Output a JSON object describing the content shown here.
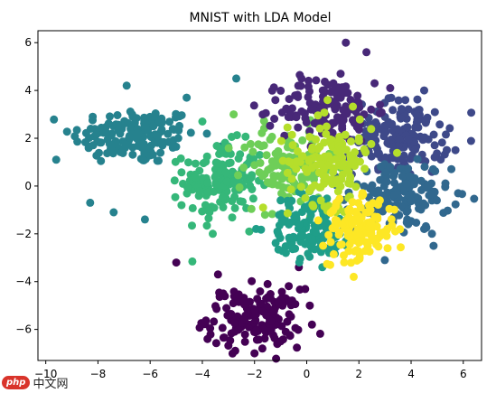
{
  "chart_data": {
    "type": "scatter",
    "title": "MNIST with LDA Model",
    "xlabel": "",
    "ylabel": "",
    "xlim": [
      -10.3,
      6.7
    ],
    "ylim": [
      -7.3,
      6.5
    ],
    "xticks": [
      -10,
      -8,
      -6,
      -4,
      -2,
      0,
      2,
      4,
      6
    ],
    "yticks": [
      -6,
      -4,
      -2,
      0,
      2,
      4,
      6
    ],
    "grid": false,
    "legend": "none",
    "colormap": "viridis",
    "series": [
      {
        "class": 0,
        "color": "#440154",
        "center": [
          -2.0,
          -5.5
        ],
        "spread": [
          0.9,
          0.6
        ],
        "n": 150,
        "points": [
          [
            -2.0,
            -7.0
          ],
          [
            -3.8,
            -6.4
          ],
          [
            -1.0,
            -6.5
          ],
          [
            -5.0,
            -3.2
          ],
          [
            -0.3,
            -3.4
          ],
          [
            -3.2,
            -4.5
          ],
          [
            -1.7,
            -6.8
          ],
          [
            0.2,
            -5.8
          ],
          [
            -3.4,
            -3.7
          ],
          [
            -1.5,
            -4.1
          ]
        ]
      },
      {
        "class": 1,
        "color": "#482878",
        "center": [
          0.8,
          3.2
        ],
        "spread": [
          0.9,
          0.7
        ],
        "n": 140,
        "points": [
          [
            1.5,
            6.0
          ],
          [
            -1.2,
            3.6
          ],
          [
            2.6,
            4.3
          ],
          [
            1.0,
            4.0
          ],
          [
            -0.2,
            4.5
          ],
          [
            2.2,
            3.0
          ],
          [
            0.4,
            2.6
          ],
          [
            3.2,
            4.1
          ],
          [
            1.3,
            4.7
          ]
        ]
      },
      {
        "class": 2,
        "color": "#3e4989",
        "center": [
          3.6,
          2.0
        ],
        "spread": [
          0.9,
          0.8
        ],
        "n": 160,
        "points": [
          [
            4.5,
            4.0
          ],
          [
            5.7,
            1.5
          ],
          [
            3.0,
            0.5
          ],
          [
            2.6,
            2.5
          ],
          [
            4.2,
            3.0
          ],
          [
            3.8,
            0.2
          ]
        ]
      },
      {
        "class": 3,
        "color": "#31688e",
        "center": [
          3.5,
          -0.4
        ],
        "spread": [
          1.0,
          0.7
        ],
        "n": 150,
        "points": [
          [
            5.8,
            -0.3
          ],
          [
            4.5,
            -1.8
          ],
          [
            2.6,
            -1.0
          ],
          [
            4.8,
            -2.0
          ],
          [
            3.2,
            0.8
          ]
        ]
      },
      {
        "class": 4,
        "color": "#26828e",
        "center": [
          -6.6,
          2.1
        ],
        "spread": [
          1.2,
          0.6
        ],
        "n": 160,
        "points": [
          [
            -9.6,
            1.1
          ],
          [
            -8.3,
            -0.7
          ],
          [
            -7.4,
            -1.1
          ],
          [
            -6.2,
            -1.4
          ],
          [
            -6.9,
            4.2
          ],
          [
            -4.6,
            3.7
          ],
          [
            -2.7,
            4.5
          ]
        ]
      },
      {
        "class": 5,
        "color": "#1f9e89",
        "center": [
          0.2,
          -1.7
        ],
        "spread": [
          0.8,
          0.7
        ],
        "n": 130,
        "points": [
          [
            -1.0,
            -0.6
          ],
          [
            0.6,
            -3.4
          ],
          [
            -0.8,
            -2.8
          ],
          [
            1.2,
            -1.0
          ],
          [
            -0.4,
            -1.2
          ]
        ]
      },
      {
        "class": 6,
        "color": "#35b779",
        "center": [
          -3.3,
          0.2
        ],
        "spread": [
          0.7,
          0.8
        ],
        "n": 150,
        "points": [
          [
            -4.0,
            2.7
          ],
          [
            -2.2,
            -1.9
          ],
          [
            -3.6,
            -2.0
          ],
          [
            -4.8,
            -0.8
          ],
          [
            -1.8,
            1.3
          ]
        ]
      },
      {
        "class": 7,
        "color": "#6ece58",
        "center": [
          -0.7,
          0.8
        ],
        "spread": [
          0.9,
          0.8
        ],
        "n": 120,
        "points": [
          [
            -2.8,
            3.0
          ],
          [
            -0.9,
            -0.4
          ],
          [
            -1.6,
            -1.2
          ],
          [
            0.2,
            2.0
          ]
        ]
      },
      {
        "class": 8,
        "color": "#b5de2b",
        "center": [
          0.9,
          1.0
        ],
        "spread": [
          0.8,
          0.9
        ],
        "n": 140,
        "points": [
          [
            0.8,
            3.6
          ],
          [
            1.6,
            -0.5
          ],
          [
            0.1,
            -0.2
          ],
          [
            2.0,
            2.0
          ]
        ]
      },
      {
        "class": 9,
        "color": "#fde725",
        "center": [
          2.0,
          -1.8
        ],
        "spread": [
          0.7,
          0.6
        ],
        "n": 140,
        "points": [
          [
            1.8,
            -3.8
          ],
          [
            3.1,
            -2.6
          ],
          [
            0.9,
            -3.3
          ],
          [
            2.8,
            -0.6
          ]
        ]
      }
    ]
  },
  "watermark": {
    "logo_text": "php",
    "text": "中文网"
  }
}
